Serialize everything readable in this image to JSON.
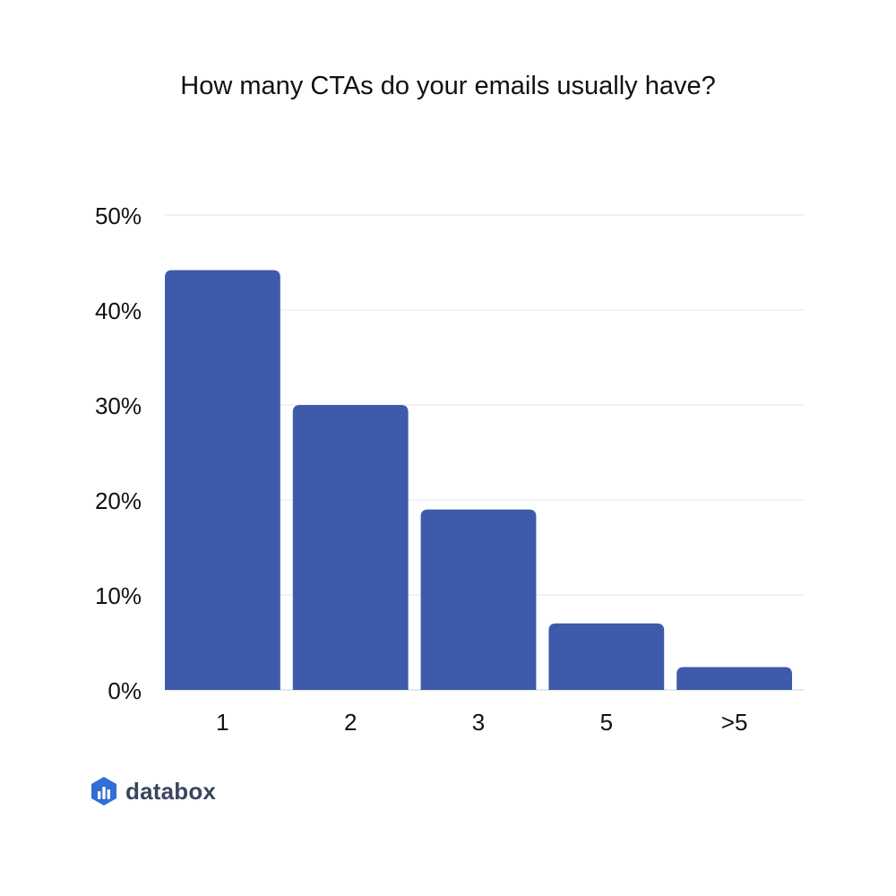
{
  "colors": {
    "bar": "#3d5aab",
    "grid": "#e6e6e6",
    "text": "#111111",
    "logo_icon": "#2f6fd6",
    "logo_text": "#3a4660"
  },
  "chart_data": {
    "type": "bar",
    "title": "How many CTAs do your emails usually have?",
    "xlabel": "",
    "ylabel": "",
    "categories": [
      "1",
      "2",
      "3",
      "5",
      ">5"
    ],
    "values": [
      44.2,
      30,
      19,
      7,
      2.4
    ],
    "ylim": [
      0,
      50
    ],
    "yticks": [
      0,
      10,
      20,
      30,
      40,
      50
    ],
    "ytick_labels": [
      "0%",
      "10%",
      "20%",
      "30%",
      "40%",
      "50%"
    ],
    "grid": true,
    "legend": "none"
  },
  "logo": {
    "text": "databox",
    "icon": "databox-bars-icon"
  }
}
